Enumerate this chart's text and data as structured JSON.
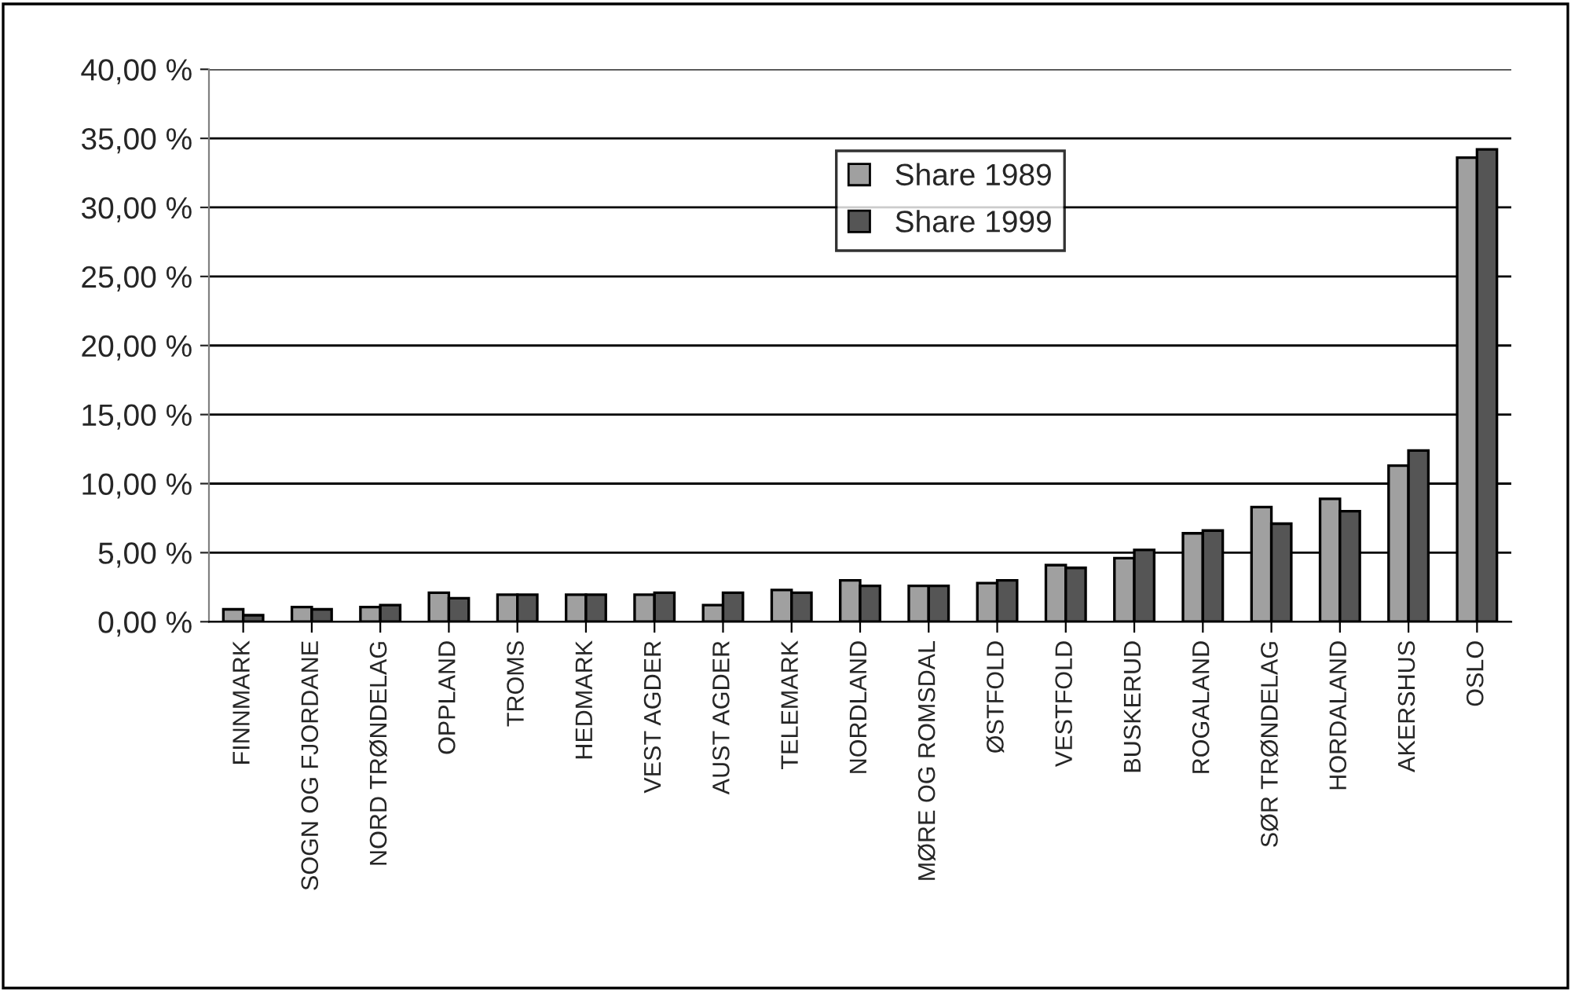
{
  "chart_data": {
    "type": "bar",
    "categories": [
      "FINNMARK",
      "SOGN OG FJORDANE",
      "NORD TRØNDELAG",
      "OPPLAND",
      "TROMS",
      "HEDMARK",
      "VEST AGDER",
      "AUST AGDER",
      "TELEMARK",
      "NORDLAND",
      "MØRE OG ROMSDAL",
      "ØSTFOLD",
      "VESTFOLD",
      "BUSKERUD",
      "ROGALAND",
      "SØR TRØNDELAG",
      "HORDALAND",
      "AKERSHUS",
      "OSLO"
    ],
    "series": [
      {
        "name": "Share 1989",
        "color": "#a0a0a0",
        "values": [
          0.9,
          1.06,
          1.06,
          2.1,
          1.96,
          1.96,
          1.96,
          1.2,
          2.3,
          3.0,
          2.6,
          2.8,
          4.1,
          4.6,
          6.4,
          8.3,
          8.9,
          11.3,
          33.6
        ]
      },
      {
        "name": "Share 1999",
        "color": "#555555",
        "values": [
          0.47,
          0.9,
          1.2,
          1.7,
          1.96,
          1.96,
          2.1,
          2.1,
          2.1,
          2.6,
          2.6,
          3.0,
          3.9,
          5.2,
          6.6,
          7.1,
          8.0,
          12.4,
          34.2
        ]
      }
    ],
    "ylim": [
      0,
      40
    ],
    "yticks": [
      {
        "value": 0,
        "label": "0,00 %"
      },
      {
        "value": 5,
        "label": "5,00 %"
      },
      {
        "value": 10,
        "label": "10,00 %"
      },
      {
        "value": 15,
        "label": "15,00 %"
      },
      {
        "value": 20,
        "label": "20,00 %"
      },
      {
        "value": 25,
        "label": "25,00 %"
      },
      {
        "value": 30,
        "label": "30,00 %"
      },
      {
        "value": 35,
        "label": "35,00 %"
      },
      {
        "value": 40,
        "label": "40,00 %"
      }
    ],
    "grid": "y",
    "legend": "top right"
  }
}
